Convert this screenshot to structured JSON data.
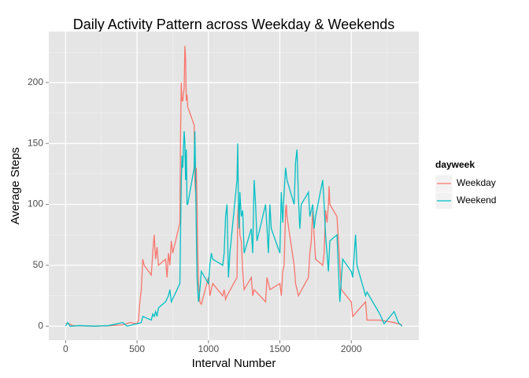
{
  "chart_data": {
    "type": "line",
    "title": "Daily Activity Pattern across Weekday & Weekends",
    "x_label": "Interval Number",
    "y_label": "Average Steps",
    "legend_title": "dayweek",
    "legend_position": "right",
    "grid": true,
    "xlim": [
      -117.75,
      2472.75
    ],
    "xticks": [
      0,
      500,
      1000,
      1500,
      2000
    ],
    "ylim": [
      -11.5,
      241.9
    ],
    "yticks": [
      0,
      50,
      100,
      150,
      200
    ],
    "series": [
      {
        "name": "Weekday",
        "color": "#F8766D",
        "x": [
          0,
          25,
          50,
          100,
          200,
          300,
          400,
          450,
          500,
          510,
          520,
          530,
          540,
          550,
          600,
          610,
          620,
          630,
          640,
          650,
          700,
          710,
          720,
          730,
          740,
          750,
          800,
          805,
          810,
          815,
          820,
          830,
          835,
          840,
          845,
          850,
          855,
          900,
          905,
          910,
          915,
          920,
          925,
          930,
          940,
          950,
          1000,
          1010,
          1020,
          1030,
          1100,
          1110,
          1120,
          1130,
          1200,
          1205,
          1210,
          1215,
          1220,
          1230,
          1240,
          1250,
          1300,
          1310,
          1320,
          1400,
          1410,
          1430,
          1500,
          1510,
          1520,
          1530,
          1540,
          1545,
          1550,
          1600,
          1610,
          1620,
          1630,
          1700,
          1710,
          1720,
          1730,
          1740,
          1750,
          1800,
          1810,
          1820,
          1830,
          1840,
          1845,
          1850,
          1900,
          1930,
          2000,
          2010,
          2100,
          2110,
          2200,
          2300,
          2330,
          2355
        ],
        "values": [
          2.3,
          2,
          0.5,
          0.3,
          0,
          0.3,
          1,
          3,
          2,
          5,
          20,
          30,
          55,
          50,
          42,
          60,
          75,
          55,
          65,
          50,
          55,
          40,
          60,
          50,
          70,
          60,
          85,
          160,
          200,
          185,
          185,
          195,
          230,
          220,
          185,
          190,
          180,
          165,
          120,
          110,
          130,
          100,
          60,
          35,
          20,
          18,
          40,
          25,
          30,
          35,
          25,
          30,
          22,
          25,
          40,
          90,
          100,
          95,
          75,
          70,
          45,
          30,
          40,
          25,
          30,
          20,
          40,
          30,
          35,
          25,
          45,
          50,
          95,
          100,
          90,
          50,
          35,
          30,
          25,
          40,
          60,
          70,
          95,
          75,
          55,
          50,
          60,
          95,
          85,
          100,
          115,
          100,
          90,
          30,
          20,
          8,
          20,
          5,
          5,
          3,
          2,
          1
        ]
      },
      {
        "name": "Weekend",
        "color": "#00BFC4",
        "x": [
          0,
          15,
          30,
          100,
          200,
          300,
          400,
          430,
          500,
          530,
          540,
          600,
          610,
          620,
          630,
          640,
          650,
          700,
          720,
          730,
          740,
          800,
          805,
          810,
          815,
          820,
          830,
          835,
          840,
          845,
          850,
          855,
          900,
          905,
          910,
          915,
          920,
          925,
          930,
          940,
          950,
          1000,
          1010,
          1020,
          1030,
          1100,
          1110,
          1120,
          1130,
          1140,
          1150,
          1200,
          1205,
          1210,
          1215,
          1220,
          1230,
          1240,
          1250,
          1300,
          1310,
          1320,
          1330,
          1340,
          1400,
          1410,
          1420,
          1430,
          1440,
          1500,
          1510,
          1520,
          1530,
          1540,
          1550,
          1600,
          1610,
          1615,
          1620,
          1630,
          1640,
          1650,
          1700,
          1710,
          1720,
          1730,
          1740,
          1750,
          1800,
          1810,
          1820,
          1830,
          1840,
          1850,
          1900,
          1920,
          1940,
          2000,
          2010,
          2030,
          2040,
          2100,
          2110,
          2200,
          2230,
          2300,
          2330,
          2355
        ],
        "values": [
          0.2,
          3,
          0,
          0.5,
          0,
          0.5,
          3,
          0,
          2,
          3,
          8,
          5,
          10,
          8,
          12,
          8,
          15,
          20,
          25,
          30,
          20,
          35,
          80,
          120,
          140,
          130,
          160,
          150,
          120,
          145,
          100,
          100,
          130,
          160,
          120,
          80,
          40,
          30,
          20,
          30,
          45,
          35,
          50,
          60,
          55,
          50,
          60,
          90,
          100,
          40,
          60,
          120,
          150,
          100,
          80,
          110,
          90,
          95,
          60,
          80,
          60,
          120,
          100,
          70,
          100,
          80,
          60,
          100,
          80,
          60,
          110,
          85,
          110,
          130,
          120,
          100,
          135,
          140,
          145,
          105,
          80,
          100,
          110,
          90,
          95,
          100,
          80,
          90,
          120,
          100,
          75,
          60,
          45,
          70,
          75,
          20,
          55,
          45,
          40,
          75,
          50,
          25,
          28,
          10,
          2,
          12,
          3,
          0
        ]
      }
    ]
  }
}
